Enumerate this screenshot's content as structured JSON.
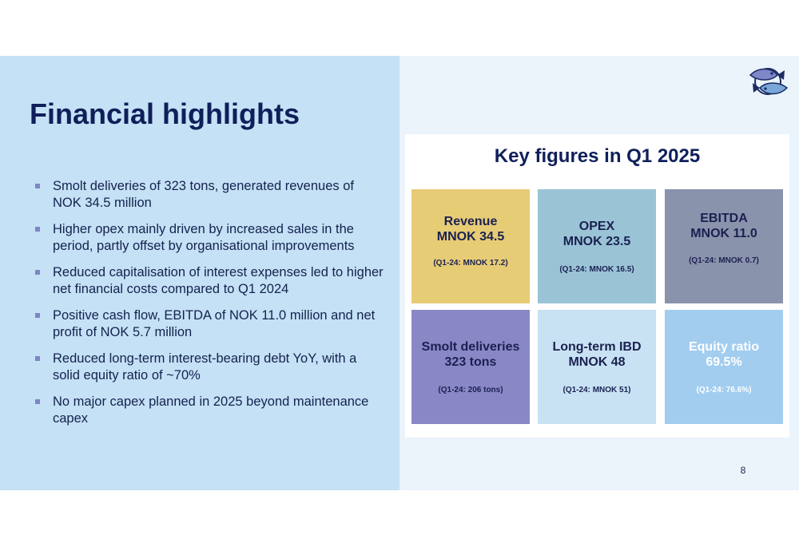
{
  "title": "Financial highlights",
  "bullets": [
    "Smolt deliveries of 323 tons, generated revenues of NOK 34.5 million",
    "Higher opex mainly driven by increased sales in the period, partly offset by organisational improvements",
    "Reduced capitalisation of interest expenses led to higher net financial costs compared to Q1 2024",
    "Positive cash flow, EBITDA of NOK 11.0 million and net profit of NOK 5.7 million",
    "Reduced long-term interest-bearing debt YoY, with a solid equity ratio of ~70%",
    "No major capex planned in 2025 beyond maintenance capex"
  ],
  "key_figures": {
    "title": "Key figures in Q1 2025",
    "tiles": [
      {
        "line1": "Revenue",
        "line2": "MNOK 34.5",
        "sub": "(Q1-24: MNOK 17.2)",
        "color": "#e7cc76"
      },
      {
        "line1": "OPEX",
        "line2": "MNOK 23.5",
        "sub": "(Q1-24: MNOK 16.5)",
        "color": "#9ac3d6"
      },
      {
        "line1": "EBITDA",
        "line2": "MNOK 11.0",
        "sub": "(Q1-24: MNOK 0.7)",
        "color": "#8a93ac"
      },
      {
        "line1": "Smolt deliveries",
        "line2": "323 tons",
        "sub": "(Q1-24: 206 tons)",
        "color": "#8a87c7"
      },
      {
        "line1": "Long-term IBD",
        "line2": "MNOK 48",
        "sub": "(Q1-24: MNOK 51)",
        "color": "#c8e2f4"
      },
      {
        "line1": "Equity ratio",
        "line2": "69.5%",
        "sub": "(Q1-24: 76.6%)",
        "color": "#a2cdef"
      }
    ]
  },
  "page_number": "8",
  "logo_icon": "fish-logo-icon"
}
